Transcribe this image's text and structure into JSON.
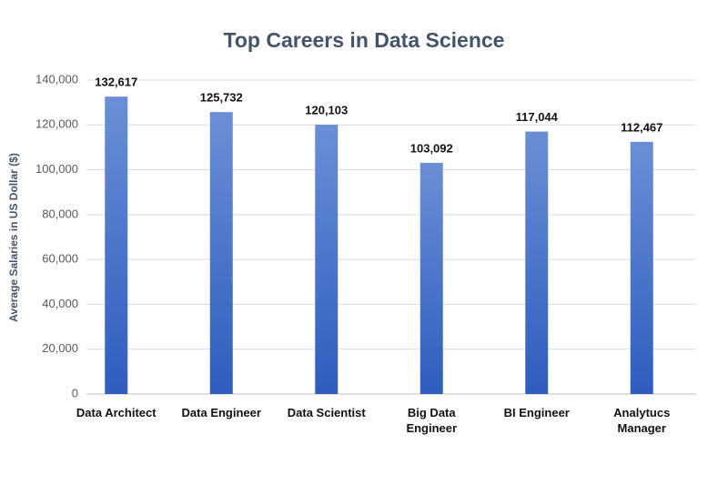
{
  "chart_data": {
    "type": "bar",
    "title": "Top Careers in Data Science",
    "y_label": "Average Salaries in US Dollar ($)",
    "categories": [
      "Data Architect",
      "Data Engineer",
      "Data Scientist",
      "Big Data Engineer",
      "BI Engineer",
      "Analytucs Manager"
    ],
    "values": [
      132617,
      125732,
      120103,
      103092,
      117044,
      112467
    ],
    "value_labels": [
      "132,617",
      "125,732",
      "120,103",
      "103,092",
      "117,044",
      "112,467"
    ],
    "color": "#4472c4",
    "ylim": [
      0,
      140000
    ],
    "yticks": [
      0,
      {
        "value": 20000,
        "label": "20,000"
      },
      {
        "value": 40000,
        "label": "40,000"
      },
      {
        "value": 60000,
        "label": "60,000"
      },
      {
        "value": 80000,
        "label": "80,000"
      },
      {
        "value": 100000,
        "label": "100,000"
      },
      {
        "value": 120000,
        "label": "120,000"
      },
      {
        "value": 140000,
        "label": "140,000"
      }
    ],
    "grid": true
  }
}
